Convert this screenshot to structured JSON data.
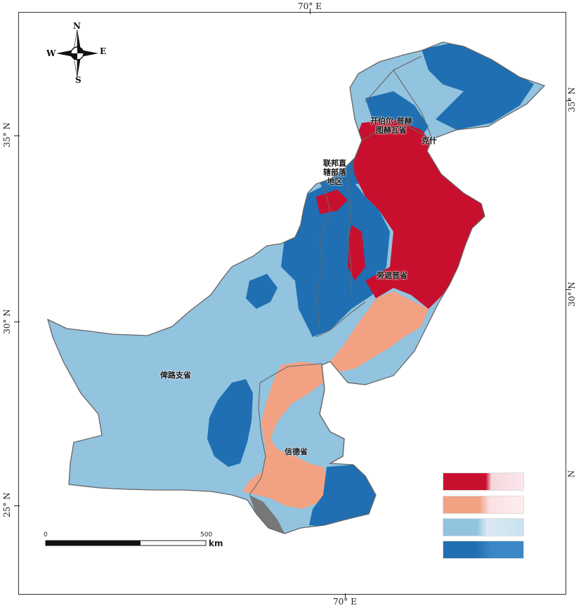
{
  "coords": {
    "top_lon": "70° E",
    "bottom_lon": "70° E",
    "left_lat_35": "35° N",
    "left_lat_30": "30° N",
    "left_lat_25": "25° N",
    "right_lat_35": "35° N",
    "right_lat_30": "30° N",
    "right_n": "N"
  },
  "compass": {
    "n": "N",
    "s": "S",
    "e": "E",
    "w": "W"
  },
  "provinces": {
    "kp_line1": "开伯尔-普赫",
    "kp_line2": "图赫瓦省",
    "kashmir": "克什",
    "fata_line1": "联邦直",
    "fata_line2": "辖部落",
    "fata_line3": "地区",
    "punjab": "旁遮普省",
    "balochistan": "俾路支省",
    "sindh": "信德省"
  },
  "scale": {
    "start": "0",
    "end": "500",
    "unit": "km"
  },
  "legend": {
    "colors": [
      "#c8102e",
      "#f2a283",
      "#92c3df",
      "#1f6fb2"
    ]
  },
  "colors": {
    "red": "#c8102e",
    "salmon": "#f2a283",
    "light_blue": "#92c3df",
    "dark_blue": "#1f6fb2",
    "border": "#666666"
  }
}
